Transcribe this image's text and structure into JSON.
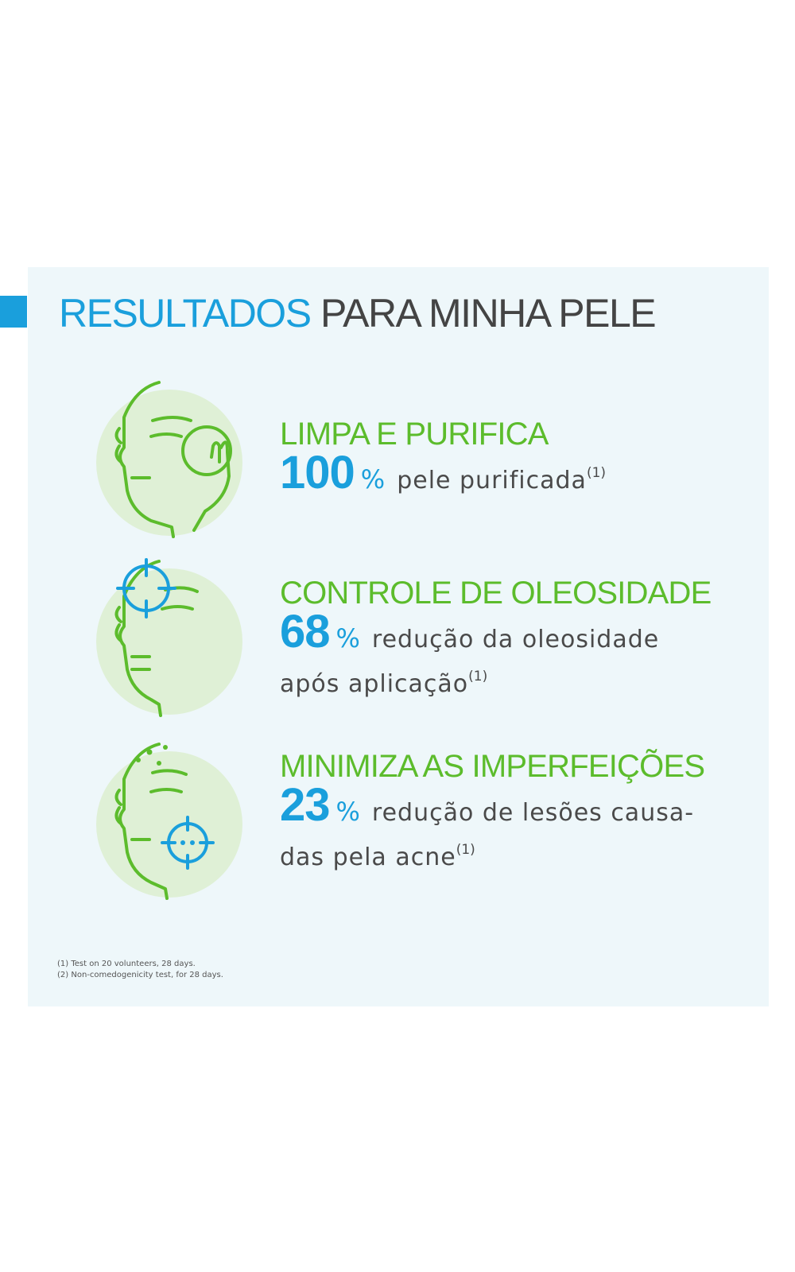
{
  "title": {
    "highlight": "RESULTADOS",
    "rest": "PARA MINHA PELE"
  },
  "colors": {
    "blue": "#1a9fdc",
    "green": "#5cbc2c",
    "panel": "#eef7fa",
    "circle": "#dff0d6",
    "text": "#4a4a4a"
  },
  "benefits": [
    {
      "icon": "face-cotton-pad-icon",
      "heading": "LIMPA E PURIFICA",
      "value": "100",
      "unit": "%",
      "line1": "pele purificada",
      "line2": "",
      "ref": "(1)"
    },
    {
      "icon": "face-forehead-target-icon",
      "heading": "CONTROLE DE OLEOSIDADE",
      "value": "68",
      "unit": "%",
      "line1": "redução da oleosidade",
      "line2": "após aplicação",
      "ref": "(1)"
    },
    {
      "icon": "face-blemish-target-icon",
      "heading": "MINIMIZA AS IMPERFEIÇÕES",
      "value": "23",
      "unit": "%",
      "line1": "redução de lesões causa-",
      "line2": "das pela acne",
      "ref": "(1)"
    }
  ],
  "footnotes": [
    "(1) Test on 20 volunteers, 28 days.",
    "(2) Non-comedogenicity test, for 28 days."
  ]
}
